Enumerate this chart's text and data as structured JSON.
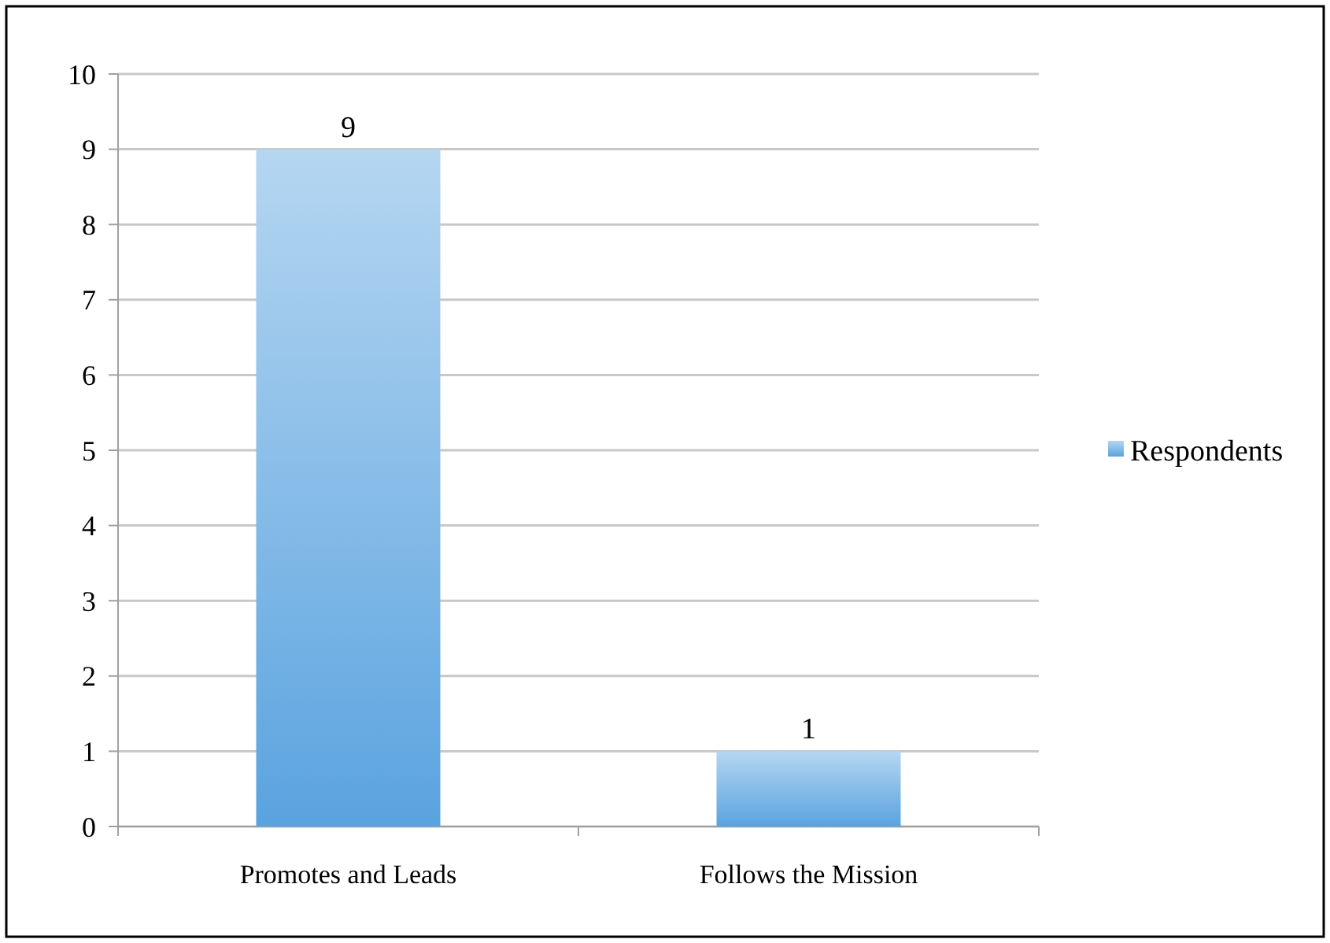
{
  "chart_data": {
    "type": "bar",
    "categories": [
      "Promotes and Leads",
      "Follows the Mission"
    ],
    "series": [
      {
        "name": "Respondents",
        "color": "#5aa3df",
        "values": [
          9,
          1
        ]
      }
    ],
    "ylim": [
      0,
      10
    ],
    "yticks": [
      0,
      1,
      2,
      3,
      4,
      5,
      6,
      7,
      8,
      9,
      10
    ],
    "grid": "y",
    "legend": "right",
    "data_labels": true
  }
}
